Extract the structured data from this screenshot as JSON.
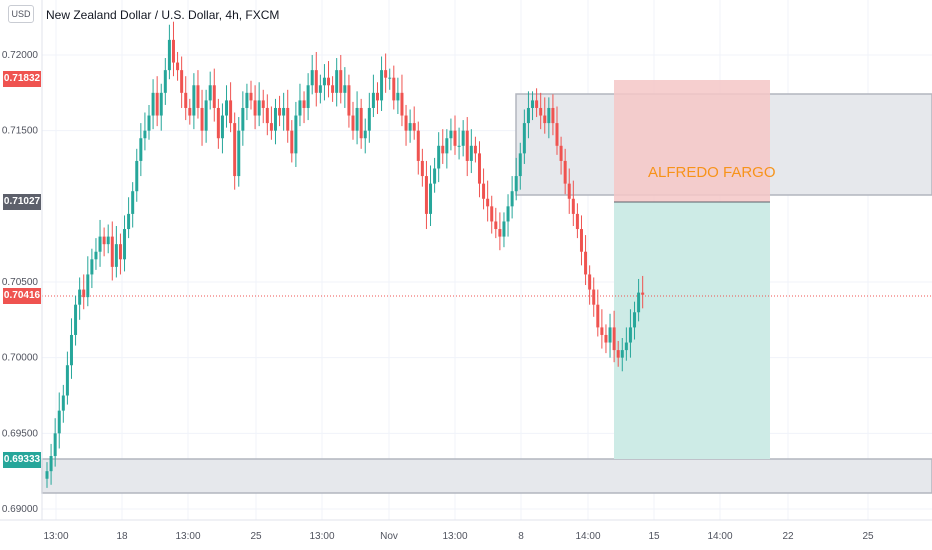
{
  "header": {
    "currency": "USD",
    "title": "New Zealand Dollar / U.S. Dollar, 4h, FXCM"
  },
  "markers": {
    "stop": "0.71832",
    "entry": "0.71027",
    "current": "0.70416",
    "target": "0.69333"
  },
  "annotation": "ALFREDO FARGO",
  "colors": {
    "up": "#26a69a",
    "down": "#ef5350",
    "stop_zone": "#f4c7c7",
    "target_zone": "#cdebe6",
    "zone": "#e6e8ec",
    "entry_label": "#5d606b",
    "annotation": "#f7931a"
  },
  "chart_data": {
    "type": "candlestick",
    "ylim": [
      0.689,
      0.724
    ],
    "y_ticks": [
      "0.72000",
      "0.71500",
      "0.70500",
      "0.70000",
      "0.69500",
      "0.69000"
    ],
    "y_tick_values": [
      0.72,
      0.715,
      0.705,
      0.7,
      0.695,
      0.69
    ],
    "x_ticks": [
      "13:00",
      "18",
      "13:00",
      "25",
      "13:00",
      "Nov",
      "13:00",
      "8",
      "14:00",
      "15",
      "14:00",
      "22",
      "25"
    ],
    "closes": [
      0.6925,
      0.6935,
      0.695,
      0.6965,
      0.6975,
      0.6995,
      0.7015,
      0.7035,
      0.7045,
      0.704,
      0.7055,
      0.7065,
      0.707,
      0.708,
      0.7075,
      0.708,
      0.706,
      0.7075,
      0.7065,
      0.7085,
      0.7095,
      0.711,
      0.713,
      0.7145,
      0.715,
      0.716,
      0.7175,
      0.716,
      0.7175,
      0.719,
      0.721,
      0.7195,
      0.719,
      0.7175,
      0.7165,
      0.716,
      0.718,
      0.7165,
      0.715,
      0.717,
      0.718,
      0.7165,
      0.7145,
      0.716,
      0.717,
      0.7155,
      0.712,
      0.715,
      0.7165,
      0.7175,
      0.717,
      0.716,
      0.717,
      0.7165,
      0.7155,
      0.715,
      0.7165,
      0.716,
      0.7165,
      0.715,
      0.7135,
      0.716,
      0.717,
      0.7165,
      0.718,
      0.719,
      0.7175,
      0.718,
      0.7185,
      0.718,
      0.7175,
      0.719,
      0.7175,
      0.718,
      0.716,
      0.715,
      0.7165,
      0.7145,
      0.715,
      0.7165,
      0.7175,
      0.717,
      0.719,
      0.7185,
      0.7185,
      0.717,
      0.7175,
      0.716,
      0.715,
      0.7155,
      0.715,
      0.713,
      0.712,
      0.7095,
      0.7115,
      0.7125,
      0.714,
      0.7135,
      0.7145,
      0.715,
      0.714,
      0.714,
      0.715,
      0.713,
      0.714,
      0.7135,
      0.7115,
      0.7105,
      0.71,
      0.709,
      0.7085,
      0.708,
      0.709,
      0.71,
      0.711,
      0.712,
      0.7135,
      0.7155,
      0.7165,
      0.717,
      0.7165,
      0.716,
      0.7155,
      0.7165,
      0.7155,
      0.714,
      0.713,
      0.7115,
      0.7105,
      0.7095,
      0.7085,
      0.707,
      0.7055,
      0.7045,
      0.7035,
      0.702,
      0.7015,
      0.701,
      0.702,
      0.7005,
      0.7,
      0.7005,
      0.701,
      0.702,
      0.703,
      0.7043,
      0.70416
    ]
  }
}
